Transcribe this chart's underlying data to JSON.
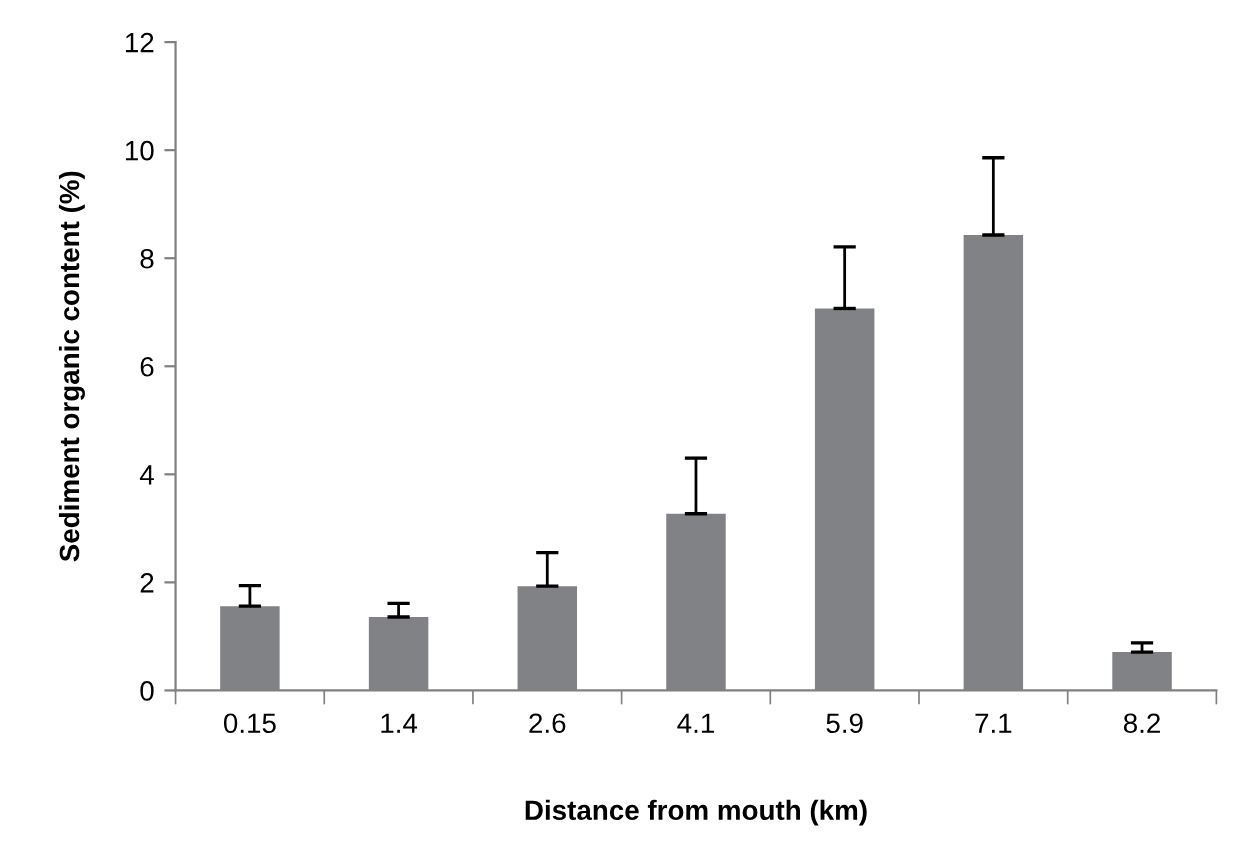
{
  "chart_data": {
    "type": "bar",
    "xlabel": "Distance from mouth (km)",
    "ylabel": "Sediment organic content (%)",
    "categories": [
      "0.15",
      "1.4",
      "2.6",
      "4.1",
      "5.9",
      "7.1",
      "8.2"
    ],
    "values": [
      1.56,
      1.36,
      1.93,
      3.27,
      7.07,
      8.43,
      0.71
    ],
    "errors": [
      [
        1.56,
        1.94
      ],
      [
        1.36,
        1.61
      ],
      [
        1.93,
        2.55
      ],
      [
        3.27,
        4.3
      ],
      [
        7.07,
        8.21
      ],
      [
        8.43,
        9.86
      ],
      [
        0.71,
        0.88
      ]
    ],
    "color": "#808285",
    "ylim": [
      0,
      12
    ],
    "yticks": [
      0,
      2,
      4,
      6,
      8,
      10,
      12
    ],
    "grid": false,
    "legend": false
  }
}
